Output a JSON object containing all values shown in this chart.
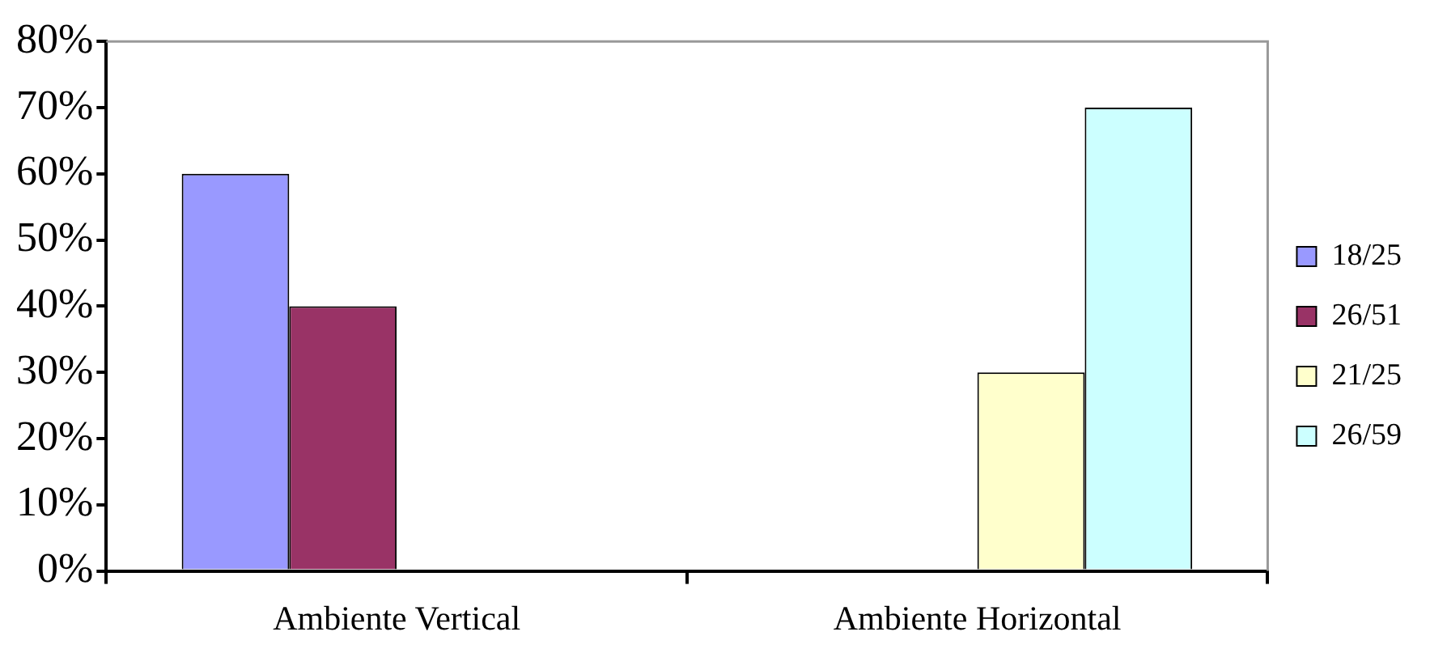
{
  "chart_data": {
    "type": "bar",
    "categories": [
      "Ambiente Vertical",
      "Ambiente Horizontal"
    ],
    "series": [
      {
        "name": "18/25",
        "color": "#9999ff",
        "values": [
          60,
          null
        ]
      },
      {
        "name": "26/51",
        "color": "#993366",
        "values": [
          40,
          null
        ]
      },
      {
        "name": "21/25",
        "color": "#ffffcc",
        "values": [
          null,
          30
        ]
      },
      {
        "name": "26/59",
        "color": "#ccffff",
        "values": [
          null,
          70
        ]
      }
    ],
    "ylim": [
      0,
      80
    ],
    "yticks": [
      {
        "value": 0,
        "label": "0%"
      },
      {
        "value": 10,
        "label": "10%"
      },
      {
        "value": 20,
        "label": "20%"
      },
      {
        "value": 30,
        "label": "30%"
      },
      {
        "value": 40,
        "label": "40%"
      },
      {
        "value": 50,
        "label": "50%"
      },
      {
        "value": 60,
        "label": "60%"
      },
      {
        "value": 70,
        "label": "70%"
      },
      {
        "value": 80,
        "label": "80%"
      }
    ],
    "grid": false,
    "legend": "right"
  }
}
